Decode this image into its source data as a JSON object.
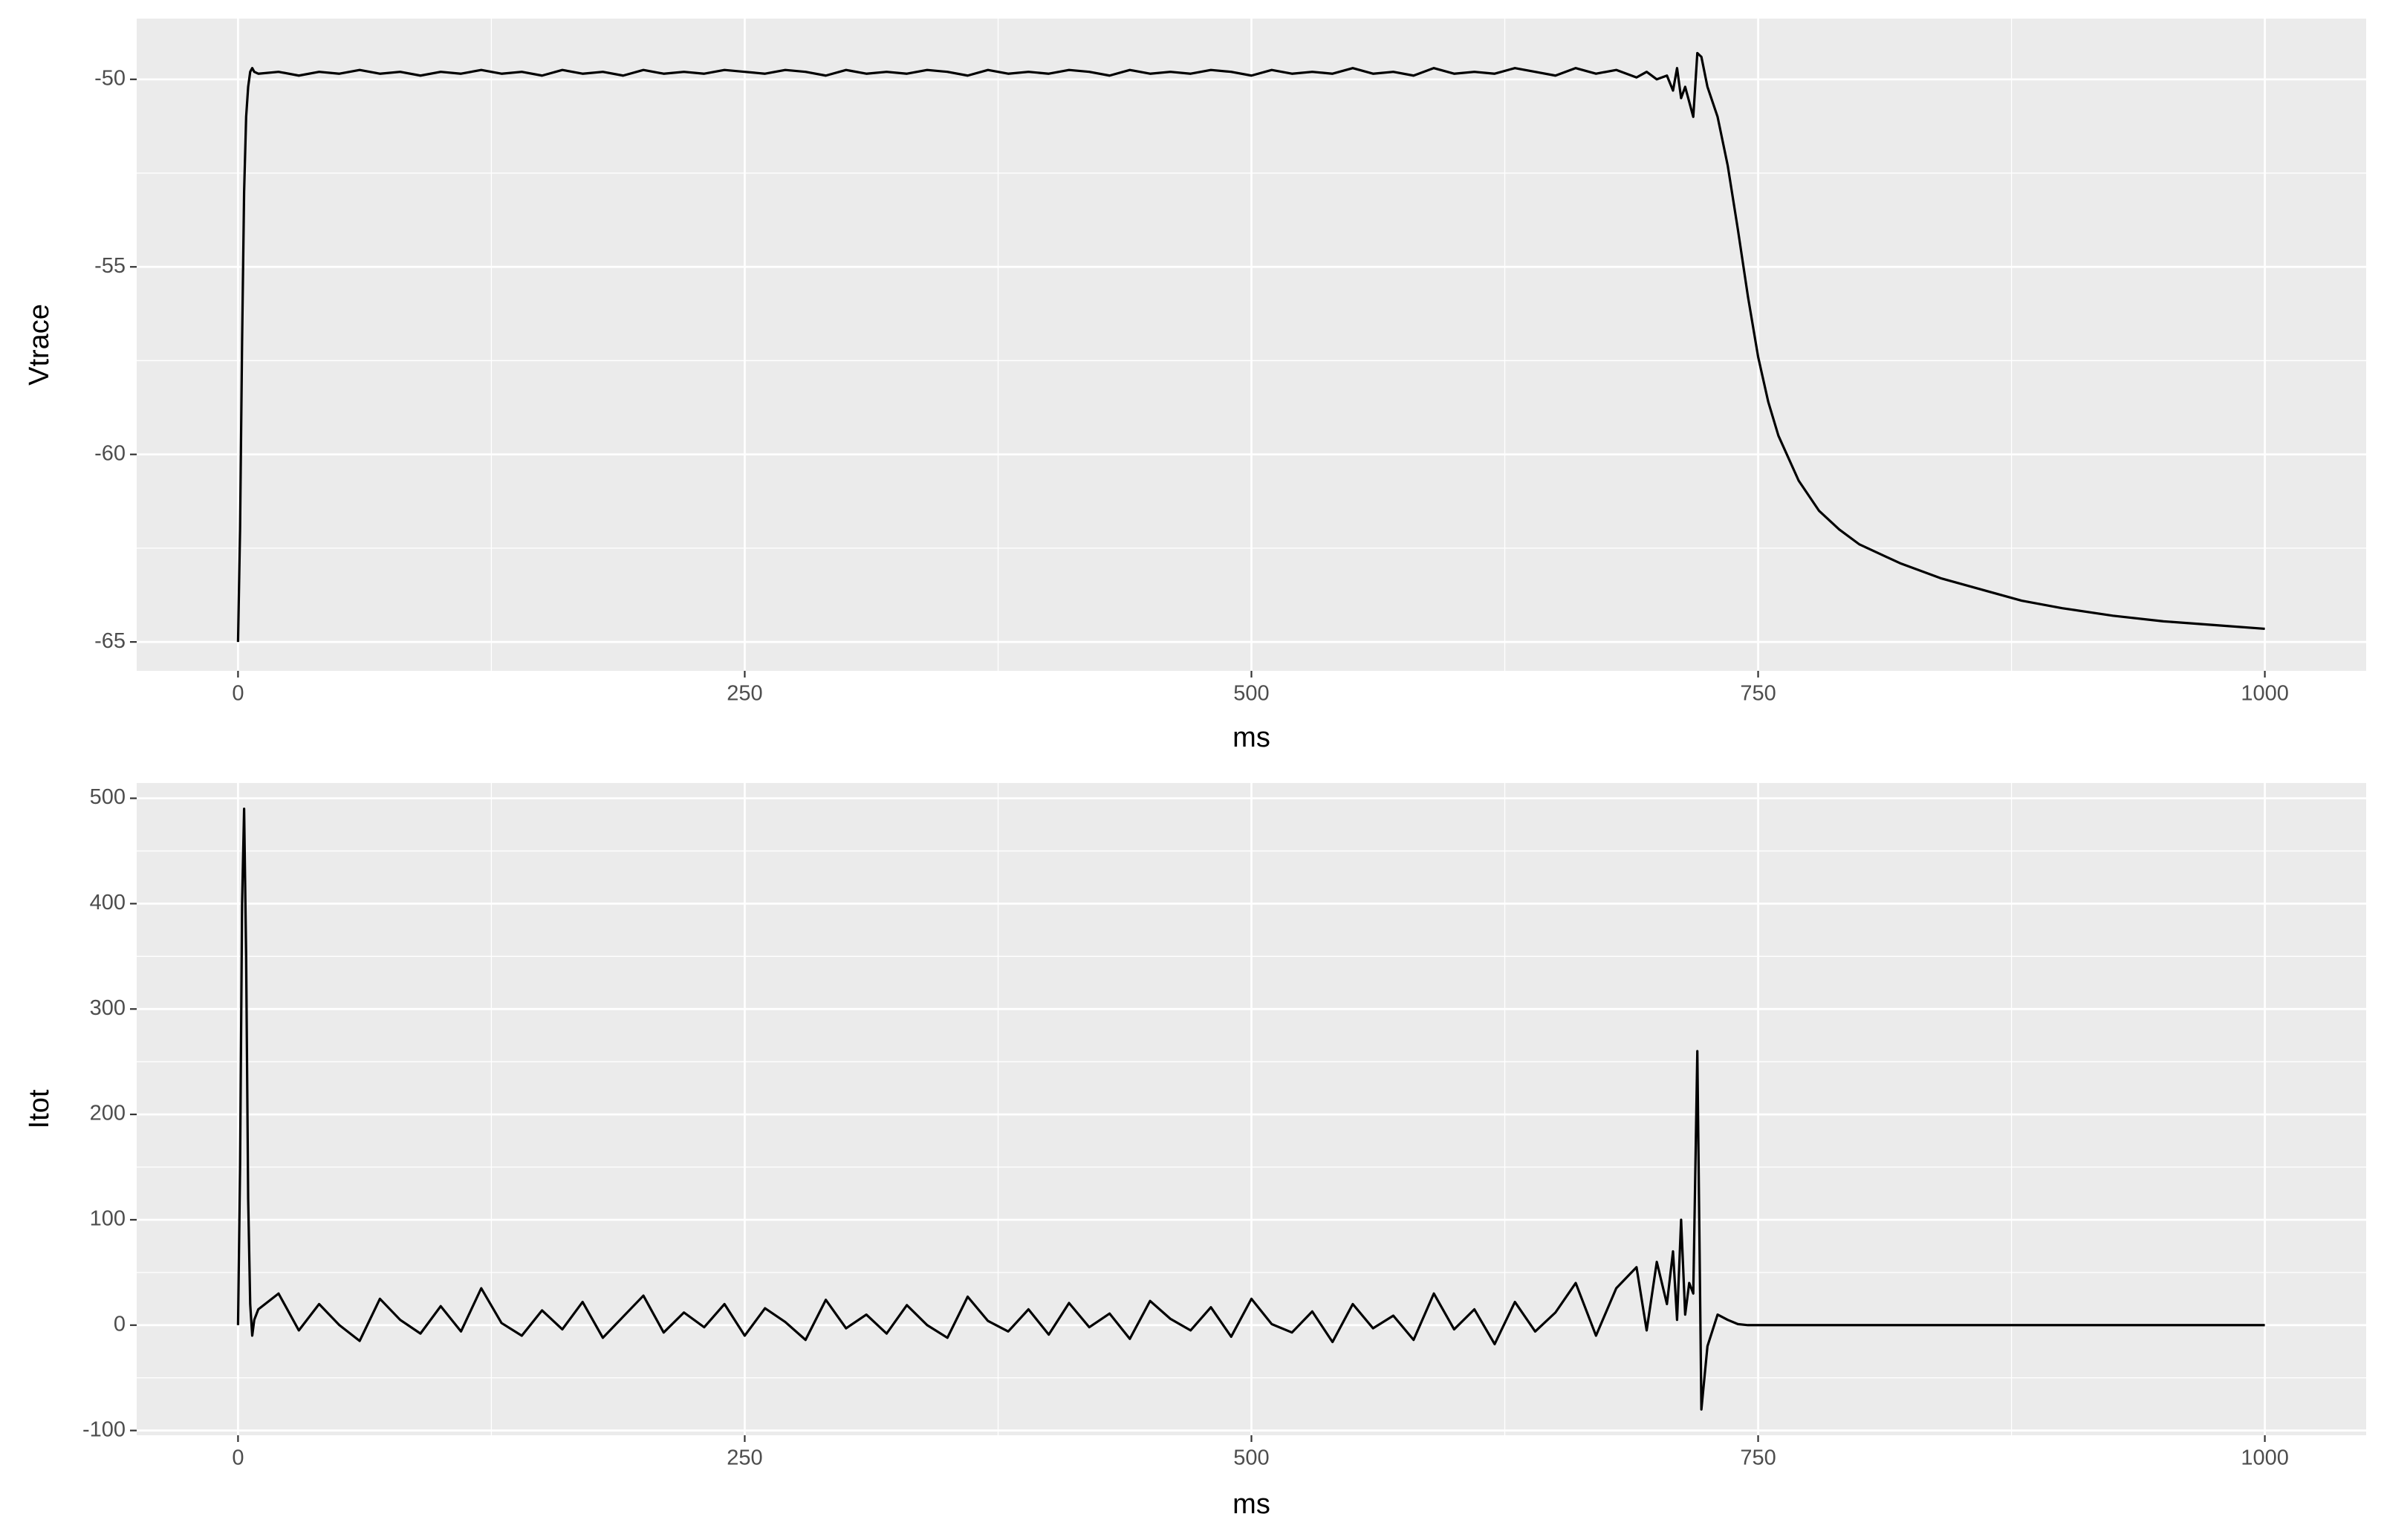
{
  "chart_data": [
    {
      "type": "line",
      "x_label": "ms",
      "y_label": "Vtrace",
      "color": "#000000",
      "grid": true,
      "xlim": [
        -50,
        1050
      ],
      "ylim": [
        -65.77,
        -48.38
      ],
      "xticks": [
        0,
        250,
        500,
        750,
        1000
      ],
      "yticks": [
        -65,
        -60,
        -55,
        -50
      ],
      "x": [
        0,
        1,
        2,
        3,
        4,
        5,
        6,
        7,
        8,
        10,
        20,
        30,
        40,
        50,
        60,
        70,
        80,
        90,
        100,
        110,
        120,
        130,
        140,
        150,
        160,
        170,
        180,
        190,
        200,
        210,
        220,
        230,
        240,
        250,
        260,
        270,
        280,
        290,
        300,
        310,
        320,
        330,
        340,
        350,
        360,
        370,
        380,
        390,
        400,
        410,
        420,
        430,
        440,
        450,
        460,
        470,
        480,
        490,
        500,
        510,
        520,
        530,
        540,
        550,
        560,
        570,
        580,
        590,
        600,
        610,
        620,
        630,
        640,
        650,
        660,
        670,
        680,
        690,
        695,
        700,
        705,
        708,
        710,
        712,
        714,
        716,
        718,
        720,
        722,
        725,
        730,
        735,
        740,
        745,
        750,
        755,
        760,
        770,
        780,
        790,
        800,
        820,
        840,
        860,
        880,
        900,
        925,
        950,
        975,
        1000
      ],
      "values": [
        -65,
        -62,
        -57,
        -53,
        -51,
        -50.2,
        -49.8,
        -49.7,
        -49.8,
        -49.85,
        -49.8,
        -49.9,
        -49.8,
        -49.85,
        -49.75,
        -49.85,
        -49.8,
        -49.9,
        -49.8,
        -49.85,
        -49.75,
        -49.85,
        -49.8,
        -49.9,
        -49.75,
        -49.85,
        -49.8,
        -49.9,
        -49.75,
        -49.85,
        -49.8,
        -49.85,
        -49.75,
        -49.8,
        -49.85,
        -49.75,
        -49.8,
        -49.9,
        -49.75,
        -49.85,
        -49.8,
        -49.85,
        -49.75,
        -49.8,
        -49.9,
        -49.75,
        -49.85,
        -49.8,
        -49.85,
        -49.75,
        -49.8,
        -49.9,
        -49.75,
        -49.85,
        -49.8,
        -49.85,
        -49.75,
        -49.8,
        -49.9,
        -49.75,
        -49.85,
        -49.8,
        -49.85,
        -49.7,
        -49.85,
        -49.8,
        -49.9,
        -49.7,
        -49.85,
        -49.8,
        -49.85,
        -49.7,
        -49.8,
        -49.9,
        -49.7,
        -49.85,
        -49.75,
        -49.95,
        -49.8,
        -50.0,
        -49.9,
        -50.3,
        -49.7,
        -50.5,
        -50.2,
        -50.6,
        -51.0,
        -49.3,
        -49.4,
        -50.2,
        -51.0,
        -52.3,
        -54.0,
        -55.8,
        -57.4,
        -58.6,
        -59.5,
        -60.7,
        -61.5,
        -62.0,
        -62.4,
        -62.9,
        -63.3,
        -63.6,
        -63.9,
        -64.1,
        -64.3,
        -64.45,
        -64.55,
        -64.65
      ]
    },
    {
      "type": "line",
      "x_label": "ms",
      "y_label": "Itot",
      "color": "#000000",
      "grid": true,
      "xlim": [
        -50,
        1050
      ],
      "ylim": [
        -104.5,
        514.5
      ],
      "xticks": [
        0,
        250,
        500,
        750,
        1000
      ],
      "yticks": [
        -100,
        0,
        100,
        200,
        300,
        400,
        500
      ],
      "x": [
        0,
        1,
        2,
        3,
        4,
        5,
        6,
        7,
        8,
        10,
        20,
        30,
        40,
        50,
        60,
        70,
        80,
        90,
        100,
        110,
        120,
        130,
        140,
        150,
        160,
        170,
        180,
        190,
        200,
        210,
        220,
        230,
        240,
        250,
        260,
        270,
        280,
        290,
        300,
        310,
        320,
        330,
        340,
        350,
        360,
        370,
        380,
        390,
        400,
        410,
        420,
        430,
        440,
        450,
        460,
        470,
        480,
        490,
        500,
        510,
        520,
        530,
        540,
        550,
        560,
        570,
        580,
        590,
        600,
        610,
        620,
        630,
        640,
        650,
        660,
        670,
        680,
        690,
        695,
        700,
        705,
        708,
        710,
        712,
        714,
        716,
        718,
        720,
        722,
        725,
        730,
        735,
        740,
        745,
        750,
        755,
        760,
        770,
        780,
        790,
        800,
        820,
        840,
        860,
        880,
        900,
        925,
        950,
        975,
        1000
      ],
      "values": [
        0,
        150,
        400,
        490,
        350,
        120,
        20,
        -10,
        5,
        15,
        30,
        -5,
        20,
        0,
        -15,
        25,
        5,
        -8,
        18,
        -6,
        35,
        2,
        -10,
        14,
        -4,
        22,
        -12,
        8,
        28,
        -7,
        12,
        -2,
        20,
        -10,
        16,
        3,
        -14,
        24,
        -3,
        10,
        -8,
        19,
        0,
        -12,
        27,
        4,
        -6,
        15,
        -9,
        21,
        -2,
        11,
        -13,
        23,
        6,
        -5,
        17,
        -11,
        25,
        1,
        -7,
        13,
        -16,
        20,
        -3,
        9,
        -14,
        30,
        -4,
        15,
        -18,
        22,
        -6,
        12,
        40,
        -10,
        35,
        55,
        -5,
        60,
        20,
        70,
        5,
        100,
        10,
        40,
        30,
        260,
        -80,
        -20,
        10,
        5,
        1,
        0,
        0,
        0,
        0,
        0,
        0,
        0,
        0,
        0,
        0,
        0,
        0,
        0,
        0,
        0,
        0,
        0
      ]
    }
  ]
}
